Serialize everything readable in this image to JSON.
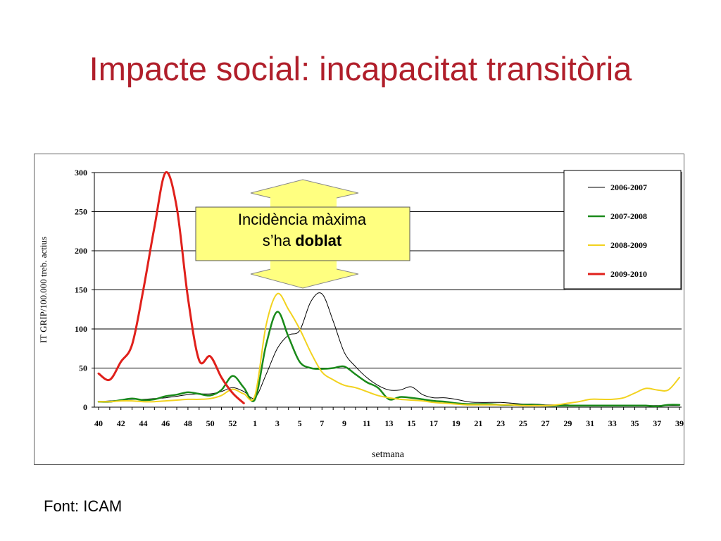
{
  "slide": {
    "title": "Impacte social: incapacitat transitòria",
    "source": "Font: ICAM",
    "callout": {
      "line1": "Incidència màxima",
      "line2_prefix": "s’ha ",
      "line2_bold": "doblat",
      "fill_color": "#ffff80"
    }
  },
  "chart_data": {
    "type": "line",
    "xlabel": "setmana",
    "ylabel": "IT GRIP/100.000 treb. actius",
    "ylim": [
      0,
      300
    ],
    "yticks": [
      0,
      50,
      100,
      150,
      200,
      250,
      300
    ],
    "grid": true,
    "legend_position": "top-right",
    "x_tick_labels": [
      "40",
      "42",
      "44",
      "46",
      "48",
      "50",
      "52",
      "1",
      "3",
      "5",
      "7",
      "9",
      "11",
      "13",
      "15",
      "17",
      "19",
      "21",
      "23",
      "25",
      "27",
      "29",
      "31",
      "33",
      "35",
      "37",
      "39"
    ],
    "x": [
      "40",
      "41",
      "42",
      "43",
      "44",
      "45",
      "46",
      "47",
      "48",
      "49",
      "50",
      "51",
      "52",
      "53",
      "1",
      "2",
      "3",
      "4",
      "5",
      "6",
      "7",
      "8",
      "9",
      "10",
      "11",
      "12",
      "13",
      "14",
      "15",
      "16",
      "17",
      "18",
      "19",
      "20",
      "21",
      "22",
      "23",
      "24",
      "25",
      "26",
      "27",
      "28",
      "29",
      "30",
      "31",
      "32",
      "33",
      "34",
      "35",
      "36",
      "37",
      "38",
      "39"
    ],
    "series": [
      {
        "name": "2006-2007",
        "color": "#000000",
        "width": 1,
        "values": [
          7,
          8,
          9,
          10,
          10,
          11,
          12,
          14,
          16,
          17,
          17,
          20,
          25,
          20,
          12,
          42,
          75,
          92,
          98,
          135,
          145,
          110,
          70,
          52,
          38,
          28,
          22,
          22,
          26,
          16,
          12,
          12,
          10,
          7,
          6,
          6,
          6,
          5,
          4,
          4,
          3,
          3,
          3,
          2,
          2,
          2,
          2,
          2,
          2,
          2,
          2,
          2,
          2
        ]
      },
      {
        "name": "2007-2008",
        "color": "#1a8a1a",
        "width": 2.5,
        "values": [
          7,
          7,
          9,
          11,
          9,
          10,
          14,
          16,
          19,
          17,
          15,
          22,
          40,
          25,
          10,
          80,
          122,
          90,
          58,
          50,
          49,
          50,
          52,
          42,
          32,
          25,
          10,
          13,
          12,
          10,
          8,
          7,
          5,
          4,
          4,
          4,
          3,
          3,
          3,
          3,
          2,
          2,
          2,
          2,
          2,
          2,
          2,
          2,
          2,
          2,
          1,
          3,
          3
        ]
      },
      {
        "name": "2008-2009",
        "color": "#f2d21e",
        "width": 2,
        "values": [
          7,
          7,
          8,
          8,
          7,
          7,
          8,
          9,
          10,
          10,
          11,
          15,
          23,
          17,
          15,
          105,
          145,
          125,
          100,
          70,
          45,
          35,
          28,
          25,
          20,
          15,
          12,
          10,
          9,
          8,
          6,
          5,
          4,
          3,
          3,
          3,
          3,
          3,
          2,
          2,
          2,
          3,
          5,
          7,
          10,
          10,
          10,
          12,
          18,
          24,
          22,
          22,
          38
        ]
      },
      {
        "name": "2009-2010",
        "color": "#e0201b",
        "width": 3,
        "values": [
          43,
          35,
          58,
          80,
          150,
          230,
          300,
          255,
          140,
          60,
          65,
          38,
          18,
          5,
          null,
          null,
          null,
          null,
          null,
          null,
          null,
          null,
          null,
          null,
          null,
          null,
          null,
          null,
          null,
          null,
          null,
          null,
          null,
          null,
          null,
          null,
          null,
          null,
          null,
          null,
          null,
          null,
          null,
          null,
          null,
          null,
          null,
          null,
          null,
          null,
          null,
          null,
          null
        ]
      }
    ]
  }
}
